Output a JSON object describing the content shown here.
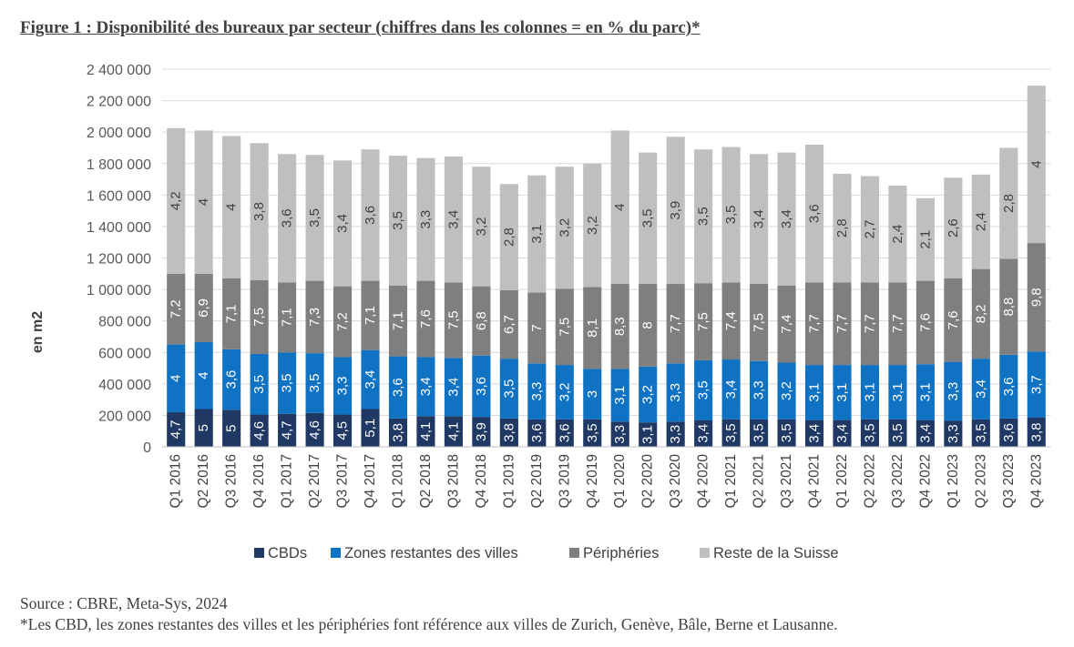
{
  "title": "Figure 1 : Disponibilité des bureaux par secteur (chiffres dans les colonnes = en % du parc)*",
  "source": "Source : CBRE, Meta-Sys, 2024",
  "footnote": "*Les CBD, les zones restantes des villes et les périphéries font référence aux villes de Zurich, Genève, Bâle, Berne et Lausanne.",
  "chart_data": {
    "type": "bar",
    "stacked": true,
    "ylabel": "en m2",
    "xlabel": "",
    "ylim": [
      0,
      2400000
    ],
    "yticks": [
      0,
      200000,
      400000,
      600000,
      800000,
      1000000,
      1200000,
      1400000,
      1600000,
      1800000,
      2000000,
      2200000,
      2400000
    ],
    "ytick_labels": [
      "0",
      "200 000",
      "400 000",
      "600 000",
      "800 000",
      "1 000 000",
      "1 200 000",
      "1 400 000",
      "1 600 000",
      "1 800 000",
      "2 000 000",
      "2 200 000",
      "2 400 000"
    ],
    "grid": true,
    "legend_position": "bottom",
    "categories": [
      "Q1 2016",
      "Q2 2016",
      "Q3 2016",
      "Q4 2016",
      "Q1 2017",
      "Q2 2017",
      "Q3 2017",
      "Q4 2017",
      "Q1 2018",
      "Q2 2018",
      "Q3 2018",
      "Q4 2018",
      "Q1 2019",
      "Q2 2019",
      "Q3 2019",
      "Q4 2019",
      "Q1 2020",
      "Q2 2020",
      "Q3 2020",
      "Q4 2020",
      "Q1 2021",
      "Q2 2021",
      "Q3 2021",
      "Q4 2021",
      "Q1 2022",
      "Q2 2022",
      "Q3 2022",
      "Q4 2022",
      "Q1 2023",
      "Q2 2023",
      "Q3 2023",
      "Q4 2023"
    ],
    "series": [
      {
        "name": "CBDs",
        "color": "#1f3864",
        "values": [
          220000,
          240000,
          235000,
          205000,
          210000,
          215000,
          205000,
          240000,
          180000,
          195000,
          195000,
          190000,
          180000,
          175000,
          175000,
          175000,
          160000,
          155000,
          160000,
          170000,
          175000,
          175000,
          175000,
          170000,
          170000,
          175000,
          175000,
          170000,
          165000,
          175000,
          180000,
          185000
        ],
        "labels": [
          "4,7",
          "5",
          "5",
          "4,6",
          "4,7",
          "4,6",
          "4,5",
          "5,1",
          "3,8",
          "4,1",
          "4,1",
          "3,9",
          "3,8",
          "3,6",
          "3,6",
          "3,5",
          "3,3",
          "3,1",
          "3,3",
          "3,4",
          "3,5",
          "3,5",
          "3,5",
          "3,4",
          "3,4",
          "3,5",
          "3,5",
          "3,4",
          "3,3",
          "3,5",
          "3,6",
          "3,8"
        ]
      },
      {
        "name": "Zones restantes des villes",
        "color": "#0f72c2",
        "values": [
          430000,
          425000,
          385000,
          385000,
          390000,
          380000,
          365000,
          375000,
          395000,
          375000,
          370000,
          390000,
          380000,
          355000,
          345000,
          320000,
          335000,
          355000,
          370000,
          380000,
          380000,
          370000,
          360000,
          350000,
          350000,
          345000,
          345000,
          355000,
          375000,
          385000,
          405000,
          420000
        ],
        "labels": [
          "4",
          "4",
          "3,6",
          "3,5",
          "3,5",
          "3,5",
          "3,3",
          "3,4",
          "3,6",
          "3,4",
          "3,4",
          "3,6",
          "3,5",
          "3,3",
          "3,2",
          "3",
          "3,1",
          "3,2",
          "3,3",
          "3,5",
          "3,4",
          "3,3",
          "3,2",
          "3,1",
          "3,1",
          "3,1",
          "3,1",
          "3,1",
          "3,3",
          "3,4",
          "3,6",
          "3,7"
        ]
      },
      {
        "name": "Périphéries",
        "color": "#7f7f7f",
        "values": [
          450000,
          435000,
          450000,
          470000,
          445000,
          460000,
          450000,
          440000,
          450000,
          485000,
          480000,
          440000,
          435000,
          450000,
          485000,
          520000,
          540000,
          525000,
          505000,
          490000,
          490000,
          490000,
          490000,
          525000,
          525000,
          525000,
          525000,
          530000,
          530000,
          570000,
          610000,
          690000
        ],
        "labels": [
          "7,2",
          "6,9",
          "7,1",
          "7,5",
          "7,1",
          "7,3",
          "7,2",
          "7,1",
          "7,1",
          "7,6",
          "7,5",
          "6,8",
          "6,7",
          "7",
          "7,5",
          "8,1",
          "8,3",
          "8",
          "7,7",
          "7,5",
          "7,4",
          "7,5",
          "7,4",
          "7,7",
          "7,7",
          "7,7",
          "7,7",
          "7,6",
          "7,6",
          "8,2",
          "8,8",
          "9,8"
        ]
      },
      {
        "name": "Reste de la Suisse",
        "color": "#bfbfbf",
        "values": [
          925000,
          910000,
          905000,
          870000,
          815000,
          800000,
          800000,
          835000,
          825000,
          780000,
          800000,
          760000,
          675000,
          745000,
          775000,
          785000,
          975000,
          835000,
          935000,
          850000,
          860000,
          825000,
          845000,
          875000,
          690000,
          675000,
          615000,
          525000,
          640000,
          600000,
          705000,
          1000000
        ],
        "labels": [
          "4,2",
          "4",
          "4",
          "3,8",
          "3,6",
          "3,5",
          "3,4",
          "3,6",
          "3,5",
          "3,3",
          "3,4",
          "3,2",
          "2,8",
          "3,1",
          "3,2",
          "3,2",
          "4",
          "3,5",
          "3,9",
          "3,5",
          "3,5",
          "3,4",
          "3,4",
          "3,6",
          "2,8",
          "2,7",
          "2,4",
          "2,1",
          "2,6",
          "2,4",
          "2,8",
          "4"
        ]
      }
    ]
  }
}
